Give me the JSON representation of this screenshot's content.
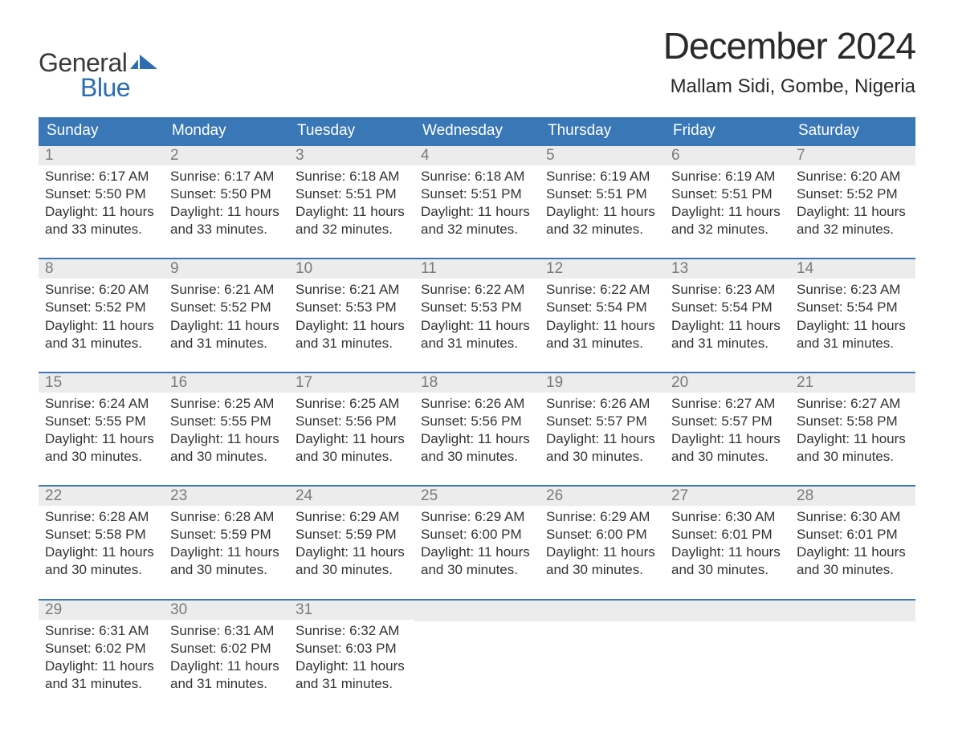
{
  "logo": {
    "word1": "General",
    "word2": "Blue",
    "accent_color": "#2a6db0",
    "text_color": "#3a3a3a"
  },
  "title": "December 2024",
  "location": "Mallam Sidi, Gombe, Nigeria",
  "colors": {
    "header_bg": "#3a77b7",
    "header_text": "#ffffff",
    "daynum_bg": "#ececec",
    "daynum_text": "#7a7a7a",
    "body_text": "#333333",
    "row_border": "#3a77b7",
    "page_bg": "#ffffff"
  },
  "fonts": {
    "title_size": 46,
    "location_size": 24,
    "dayheader_size": 19,
    "daynum_size": 19,
    "body_size": 17
  },
  "day_headers": [
    "Sunday",
    "Monday",
    "Tuesday",
    "Wednesday",
    "Thursday",
    "Friday",
    "Saturday"
  ],
  "weeks": [
    [
      {
        "num": "1",
        "sunrise": "Sunrise: 6:17 AM",
        "sunset": "Sunset: 5:50 PM",
        "daylight": "Daylight: 11 hours and 33 minutes."
      },
      {
        "num": "2",
        "sunrise": "Sunrise: 6:17 AM",
        "sunset": "Sunset: 5:50 PM",
        "daylight": "Daylight: 11 hours and 33 minutes."
      },
      {
        "num": "3",
        "sunrise": "Sunrise: 6:18 AM",
        "sunset": "Sunset: 5:51 PM",
        "daylight": "Daylight: 11 hours and 32 minutes."
      },
      {
        "num": "4",
        "sunrise": "Sunrise: 6:18 AM",
        "sunset": "Sunset: 5:51 PM",
        "daylight": "Daylight: 11 hours and 32 minutes."
      },
      {
        "num": "5",
        "sunrise": "Sunrise: 6:19 AM",
        "sunset": "Sunset: 5:51 PM",
        "daylight": "Daylight: 11 hours and 32 minutes."
      },
      {
        "num": "6",
        "sunrise": "Sunrise: 6:19 AM",
        "sunset": "Sunset: 5:51 PM",
        "daylight": "Daylight: 11 hours and 32 minutes."
      },
      {
        "num": "7",
        "sunrise": "Sunrise: 6:20 AM",
        "sunset": "Sunset: 5:52 PM",
        "daylight": "Daylight: 11 hours and 32 minutes."
      }
    ],
    [
      {
        "num": "8",
        "sunrise": "Sunrise: 6:20 AM",
        "sunset": "Sunset: 5:52 PM",
        "daylight": "Daylight: 11 hours and 31 minutes."
      },
      {
        "num": "9",
        "sunrise": "Sunrise: 6:21 AM",
        "sunset": "Sunset: 5:52 PM",
        "daylight": "Daylight: 11 hours and 31 minutes."
      },
      {
        "num": "10",
        "sunrise": "Sunrise: 6:21 AM",
        "sunset": "Sunset: 5:53 PM",
        "daylight": "Daylight: 11 hours and 31 minutes."
      },
      {
        "num": "11",
        "sunrise": "Sunrise: 6:22 AM",
        "sunset": "Sunset: 5:53 PM",
        "daylight": "Daylight: 11 hours and 31 minutes."
      },
      {
        "num": "12",
        "sunrise": "Sunrise: 6:22 AM",
        "sunset": "Sunset: 5:54 PM",
        "daylight": "Daylight: 11 hours and 31 minutes."
      },
      {
        "num": "13",
        "sunrise": "Sunrise: 6:23 AM",
        "sunset": "Sunset: 5:54 PM",
        "daylight": "Daylight: 11 hours and 31 minutes."
      },
      {
        "num": "14",
        "sunrise": "Sunrise: 6:23 AM",
        "sunset": "Sunset: 5:54 PM",
        "daylight": "Daylight: 11 hours and 31 minutes."
      }
    ],
    [
      {
        "num": "15",
        "sunrise": "Sunrise: 6:24 AM",
        "sunset": "Sunset: 5:55 PM",
        "daylight": "Daylight: 11 hours and 30 minutes."
      },
      {
        "num": "16",
        "sunrise": "Sunrise: 6:25 AM",
        "sunset": "Sunset: 5:55 PM",
        "daylight": "Daylight: 11 hours and 30 minutes."
      },
      {
        "num": "17",
        "sunrise": "Sunrise: 6:25 AM",
        "sunset": "Sunset: 5:56 PM",
        "daylight": "Daylight: 11 hours and 30 minutes."
      },
      {
        "num": "18",
        "sunrise": "Sunrise: 6:26 AM",
        "sunset": "Sunset: 5:56 PM",
        "daylight": "Daylight: 11 hours and 30 minutes."
      },
      {
        "num": "19",
        "sunrise": "Sunrise: 6:26 AM",
        "sunset": "Sunset: 5:57 PM",
        "daylight": "Daylight: 11 hours and 30 minutes."
      },
      {
        "num": "20",
        "sunrise": "Sunrise: 6:27 AM",
        "sunset": "Sunset: 5:57 PM",
        "daylight": "Daylight: 11 hours and 30 minutes."
      },
      {
        "num": "21",
        "sunrise": "Sunrise: 6:27 AM",
        "sunset": "Sunset: 5:58 PM",
        "daylight": "Daylight: 11 hours and 30 minutes."
      }
    ],
    [
      {
        "num": "22",
        "sunrise": "Sunrise: 6:28 AM",
        "sunset": "Sunset: 5:58 PM",
        "daylight": "Daylight: 11 hours and 30 minutes."
      },
      {
        "num": "23",
        "sunrise": "Sunrise: 6:28 AM",
        "sunset": "Sunset: 5:59 PM",
        "daylight": "Daylight: 11 hours and 30 minutes."
      },
      {
        "num": "24",
        "sunrise": "Sunrise: 6:29 AM",
        "sunset": "Sunset: 5:59 PM",
        "daylight": "Daylight: 11 hours and 30 minutes."
      },
      {
        "num": "25",
        "sunrise": "Sunrise: 6:29 AM",
        "sunset": "Sunset: 6:00 PM",
        "daylight": "Daylight: 11 hours and 30 minutes."
      },
      {
        "num": "26",
        "sunrise": "Sunrise: 6:29 AM",
        "sunset": "Sunset: 6:00 PM",
        "daylight": "Daylight: 11 hours and 30 minutes."
      },
      {
        "num": "27",
        "sunrise": "Sunrise: 6:30 AM",
        "sunset": "Sunset: 6:01 PM",
        "daylight": "Daylight: 11 hours and 30 minutes."
      },
      {
        "num": "28",
        "sunrise": "Sunrise: 6:30 AM",
        "sunset": "Sunset: 6:01 PM",
        "daylight": "Daylight: 11 hours and 30 minutes."
      }
    ],
    [
      {
        "num": "29",
        "sunrise": "Sunrise: 6:31 AM",
        "sunset": "Sunset: 6:02 PM",
        "daylight": "Daylight: 11 hours and 31 minutes."
      },
      {
        "num": "30",
        "sunrise": "Sunrise: 6:31 AM",
        "sunset": "Sunset: 6:02 PM",
        "daylight": "Daylight: 11 hours and 31 minutes."
      },
      {
        "num": "31",
        "sunrise": "Sunrise: 6:32 AM",
        "sunset": "Sunset: 6:03 PM",
        "daylight": "Daylight: 11 hours and 31 minutes."
      },
      {
        "empty": true
      },
      {
        "empty": true
      },
      {
        "empty": true
      },
      {
        "empty": true
      }
    ]
  ]
}
